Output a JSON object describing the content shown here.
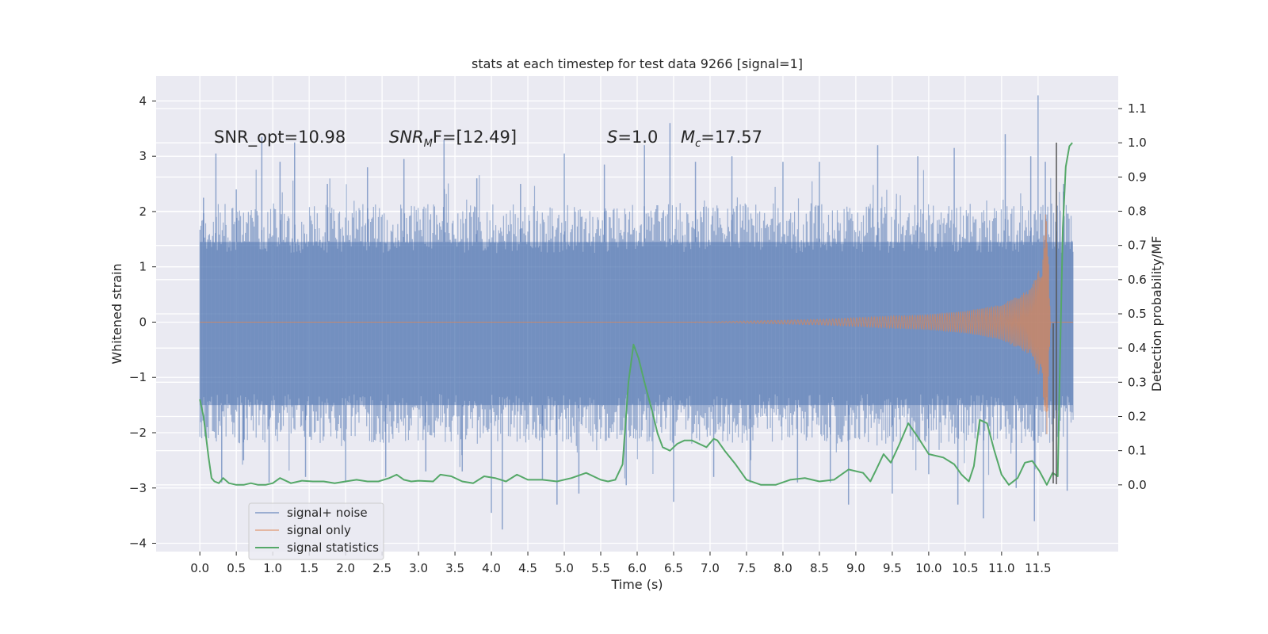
{
  "chart_data": {
    "type": "line",
    "title": "stats at each timestep for test data 9266 [signal=1]",
    "xlabel": "Time (s)",
    "ylabel_left": "Whitened strain",
    "ylabel_right": "Detection probability/MF",
    "xlim": [
      -0.6,
      12.6
    ],
    "ylim_left": [
      -4.15,
      4.45
    ],
    "ylim_right": [
      -0.195,
      1.195
    ],
    "x_ticks": [
      "0.0",
      "0.5",
      "1.0",
      "1.5",
      "2.0",
      "2.5",
      "3.0",
      "3.5",
      "4.0",
      "4.5",
      "5.0",
      "5.5",
      "6.0",
      "6.5",
      "7.0",
      "7.5",
      "8.0",
      "8.5",
      "9.0",
      "9.5",
      "10.0",
      "10.5",
      "11.0",
      "11.5"
    ],
    "y_ticks_left": [
      "4",
      "3",
      "2",
      "1",
      "0",
      "−1",
      "−2",
      "−3",
      "−4"
    ],
    "y_ticks_right": [
      "1.1",
      "1.0",
      "0.9",
      "0.8",
      "0.7",
      "0.6",
      "0.5",
      "0.4",
      "0.3",
      "0.2",
      "0.1",
      "0.0"
    ],
    "grid": true,
    "legend_position": "lower-left",
    "annotations": {
      "snr_opt": "SNR_opt=10.98",
      "snr_mf_main": "SNR",
      "snr_mf_sub": "M",
      "snr_mf_rest": "F=[12.49]",
      "s_main": "S",
      "s_rest": "=1.0",
      "mc_main": "M",
      "mc_sub": "c",
      "mc_rest": "=17.57"
    },
    "series": [
      {
        "name": "signal+ noise",
        "color": "#4c72b0",
        "style": "noise band, core approximately -1.5 to 1.5 with spikes",
        "x_range": [
          0.0,
          11.98
        ],
        "core_range": [
          -1.5,
          1.45
        ],
        "spikes": [
          {
            "x": 0.05,
            "y": 2.25
          },
          {
            "x": 0.1,
            "y": -1.9
          },
          {
            "x": 0.22,
            "y": 3.05
          },
          {
            "x": 0.3,
            "y": -2.9
          },
          {
            "x": 0.5,
            "y": 2.4
          },
          {
            "x": 0.6,
            "y": -2.5
          },
          {
            "x": 0.85,
            "y": 3.35
          },
          {
            "x": 0.95,
            "y": -2.9
          },
          {
            "x": 1.1,
            "y": 2.9
          },
          {
            "x": 1.3,
            "y": 3.25
          },
          {
            "x": 1.45,
            "y": -2.8
          },
          {
            "x": 1.75,
            "y": 2.5
          },
          {
            "x": 2.0,
            "y": -2.9
          },
          {
            "x": 2.3,
            "y": 2.8
          },
          {
            "x": 2.55,
            "y": -2.8
          },
          {
            "x": 2.8,
            "y": 2.95
          },
          {
            "x": 3.1,
            "y": -2.7
          },
          {
            "x": 3.35,
            "y": 3.3
          },
          {
            "x": 3.6,
            "y": -2.7
          },
          {
            "x": 3.8,
            "y": 2.6
          },
          {
            "x": 4.0,
            "y": -3.45
          },
          {
            "x": 4.15,
            "y": -3.75
          },
          {
            "x": 4.4,
            "y": 2.5
          },
          {
            "x": 4.7,
            "y": -2.85
          },
          {
            "x": 4.9,
            "y": -3.3
          },
          {
            "x": 5.0,
            "y": 3.05
          },
          {
            "x": 5.2,
            "y": -3.1
          },
          {
            "x": 5.55,
            "y": 2.85
          },
          {
            "x": 5.85,
            "y": -2.95
          },
          {
            "x": 6.1,
            "y": 3.2
          },
          {
            "x": 6.45,
            "y": 3.6
          },
          {
            "x": 6.5,
            "y": -3.25
          },
          {
            "x": 6.8,
            "y": 2.9
          },
          {
            "x": 7.05,
            "y": -2.8
          },
          {
            "x": 7.3,
            "y": 3.0
          },
          {
            "x": 7.55,
            "y": -2.9
          },
          {
            "x": 8.0,
            "y": 2.9
          },
          {
            "x": 8.2,
            "y": -2.9
          },
          {
            "x": 8.5,
            "y": 2.9
          },
          {
            "x": 8.65,
            "y": -2.9
          },
          {
            "x": 8.9,
            "y": -3.3
          },
          {
            "x": 9.3,
            "y": 3.2
          },
          {
            "x": 9.5,
            "y": -3.1
          },
          {
            "x": 9.85,
            "y": 3.0
          },
          {
            "x": 10.0,
            "y": -2.75
          },
          {
            "x": 10.35,
            "y": 3.15
          },
          {
            "x": 10.4,
            "y": -3.3
          },
          {
            "x": 10.75,
            "y": -3.55
          },
          {
            "x": 11.05,
            "y": 3.4
          },
          {
            "x": 11.2,
            "y": -3.0
          },
          {
            "x": 11.4,
            "y": 3.0
          },
          {
            "x": 11.5,
            "y": 4.1
          },
          {
            "x": 11.45,
            "y": -3.6
          },
          {
            "x": 11.6,
            "y": 2.9
          },
          {
            "x": 11.85,
            "y": 2.5
          },
          {
            "x": 11.9,
            "y": -3.05
          }
        ]
      },
      {
        "name": "signal only",
        "color": "#dd8452",
        "style": "chirp, amplitude grows from 0 near x=7 to about 2.2 at x=11.62, then ends",
        "x_range": [
          0.0,
          11.98
        ],
        "amplitude_profile": [
          [
            0.0,
            0.0
          ],
          [
            7.0,
            0.005
          ],
          [
            8.5,
            0.05
          ],
          [
            10.0,
            0.14
          ],
          [
            10.5,
            0.2
          ],
          [
            11.0,
            0.32
          ],
          [
            11.4,
            0.6
          ],
          [
            11.55,
            1.1
          ],
          [
            11.62,
            2.2
          ],
          [
            11.67,
            0.0
          ]
        ]
      },
      {
        "name": "signal statistics",
        "color": "#55a868",
        "axis": "right",
        "x": [
          0.0,
          0.05,
          0.08,
          0.12,
          0.16,
          0.2,
          0.26,
          0.32,
          0.4,
          0.5,
          0.6,
          0.7,
          0.8,
          0.9,
          1.0,
          1.1,
          1.25,
          1.4,
          1.55,
          1.7,
          1.85,
          2.0,
          2.15,
          2.3,
          2.45,
          2.6,
          2.7,
          2.8,
          2.9,
          3.0,
          3.2,
          3.3,
          3.45,
          3.6,
          3.75,
          3.9,
          4.05,
          4.2,
          4.35,
          4.5,
          4.7,
          4.9,
          5.1,
          5.3,
          5.5,
          5.6,
          5.7,
          5.8,
          5.88,
          5.95,
          6.02,
          6.1,
          6.2,
          6.28,
          6.35,
          6.45,
          6.55,
          6.65,
          6.75,
          6.85,
          6.95,
          7.05,
          7.1,
          7.2,
          7.35,
          7.5,
          7.7,
          7.9,
          8.1,
          8.3,
          8.5,
          8.7,
          8.9,
          9.1,
          9.2,
          9.28,
          9.38,
          9.48,
          9.6,
          9.72,
          9.85,
          10.0,
          10.2,
          10.35,
          10.45,
          10.55,
          10.62,
          10.7,
          10.8,
          10.9,
          11.0,
          11.1,
          11.22,
          11.32,
          11.42,
          11.52,
          11.62,
          11.7,
          11.77,
          11.8,
          11.84,
          11.88,
          11.93,
          11.97
        ],
        "y": [
          0.25,
          0.2,
          0.15,
          0.08,
          0.02,
          0.01,
          0.005,
          0.02,
          0.005,
          0.0,
          0.0,
          0.005,
          0.0,
          0.0,
          0.005,
          0.02,
          0.005,
          0.012,
          0.01,
          0.01,
          0.005,
          0.01,
          0.015,
          0.01,
          0.01,
          0.02,
          0.03,
          0.015,
          0.01,
          0.012,
          0.01,
          0.03,
          0.025,
          0.01,
          0.005,
          0.025,
          0.02,
          0.01,
          0.03,
          0.015,
          0.015,
          0.01,
          0.02,
          0.035,
          0.015,
          0.01,
          0.015,
          0.06,
          0.3,
          0.41,
          0.37,
          0.3,
          0.22,
          0.15,
          0.11,
          0.1,
          0.12,
          0.13,
          0.13,
          0.12,
          0.11,
          0.135,
          0.13,
          0.1,
          0.06,
          0.015,
          0.0,
          0.0,
          0.015,
          0.02,
          0.01,
          0.015,
          0.045,
          0.035,
          0.01,
          0.045,
          0.09,
          0.065,
          0.12,
          0.18,
          0.14,
          0.09,
          0.08,
          0.06,
          0.03,
          0.01,
          0.055,
          0.19,
          0.18,
          0.1,
          0.03,
          0.0,
          0.02,
          0.065,
          0.07,
          0.04,
          0.0,
          0.035,
          0.025,
          0.35,
          0.75,
          0.93,
          0.99,
          1.0
        ]
      }
    ]
  }
}
